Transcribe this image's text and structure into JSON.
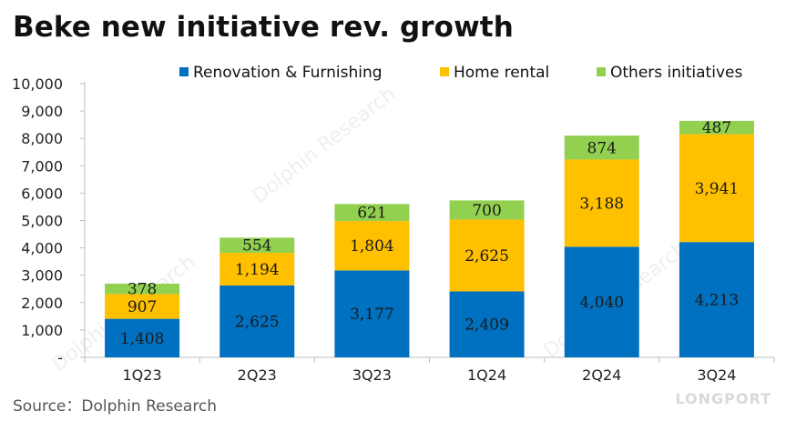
{
  "title": "Beke new initiative rev. growth",
  "source_label": "Source：",
  "source_name": "Dolphin Research",
  "watermark_text": "Dolphin Research",
  "watermark_brand": "LONGPORT",
  "chart_data": {
    "type": "stacked-bar",
    "categories": [
      "1Q23",
      "2Q23",
      "3Q23",
      "1Q24",
      "2Q24",
      "3Q24"
    ],
    "series": [
      {
        "name": "Renovation & Furnishing",
        "color": "#0070C0",
        "values": [
          1408,
          2625,
          3177,
          2409,
          4040,
          4213
        ]
      },
      {
        "name": "Home rental",
        "color": "#FFC000",
        "values": [
          907,
          1194,
          1804,
          2625,
          3188,
          3941
        ]
      },
      {
        "name": "Others initiatives",
        "color": "#92D050",
        "values": [
          378,
          554,
          621,
          700,
          874,
          487
        ]
      }
    ],
    "data_labels": [
      [
        "1,408",
        "2,625",
        "3,177",
        "2,409",
        "4,040",
        "4,213"
      ],
      [
        "907",
        "1,194",
        "1,804",
        "2,625",
        "3,188",
        "3,941"
      ],
      [
        "378",
        "554",
        "621",
        "700",
        "874",
        "487"
      ]
    ],
    "y_ticks": [
      0,
      1000,
      2000,
      3000,
      4000,
      5000,
      6000,
      7000,
      8000,
      9000,
      10000
    ],
    "y_tick_labels": [
      "-",
      "1,000",
      "2,000",
      "3,000",
      "4,000",
      "5,000",
      "6,000",
      "7,000",
      "8,000",
      "9,000",
      "10,000"
    ],
    "ylim": [
      0,
      10000
    ],
    "legend_position": "top-right",
    "grid": false
  }
}
